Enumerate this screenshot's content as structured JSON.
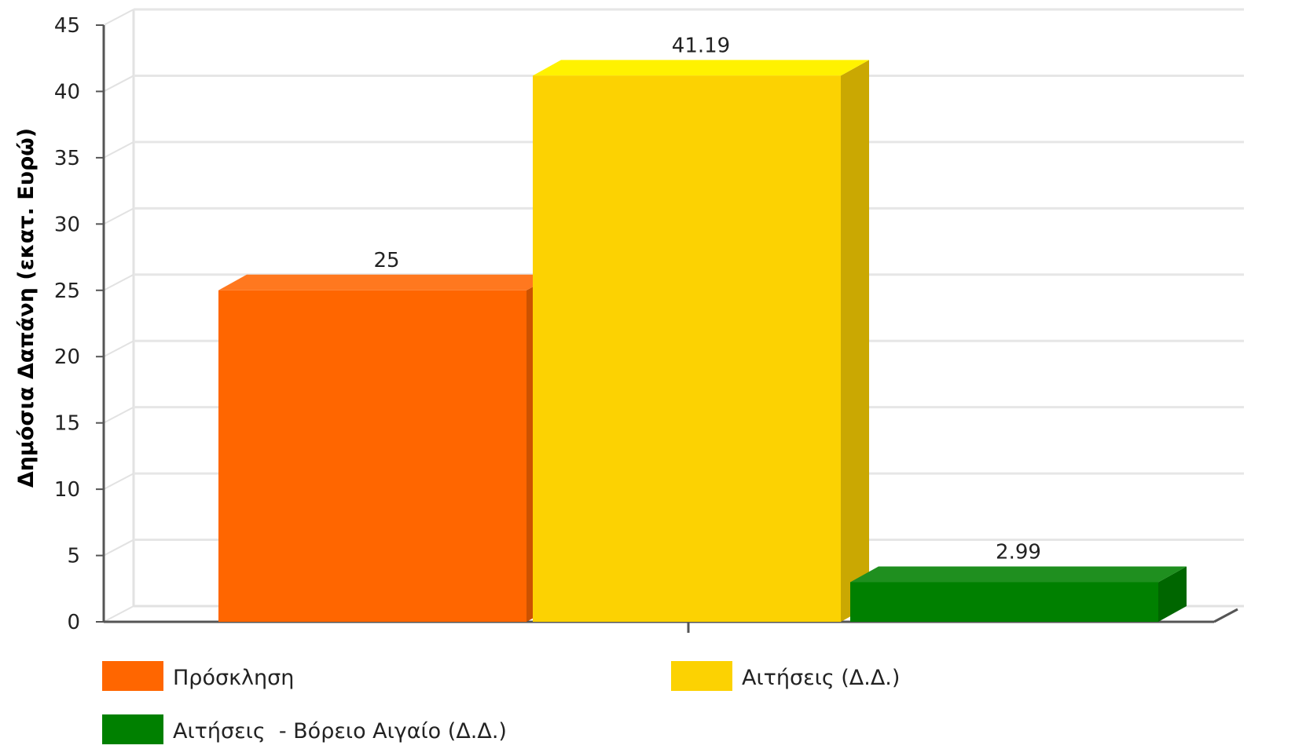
{
  "chart_data": {
    "type": "bar",
    "style": "3d-column",
    "categories": [
      ""
    ],
    "series": [
      {
        "name": "Πρόσκληση",
        "values": [
          25
        ],
        "color": "#FF6600",
        "data_label": "25"
      },
      {
        "name": "Αιτήσεις (Δ.Δ.)",
        "values": [
          41.19
        ],
        "color": "#FCD202",
        "data_label": "41.19"
      },
      {
        "name": "Αιτήσεις  - Βόρειο Αιγαίο (Δ.Δ.)",
        "values": [
          2.99
        ],
        "color": "#008000",
        "data_label": "2.99"
      }
    ],
    "ylabel": "Δημόσια Δαπάνη (εκατ. Ευρώ)",
    "xlabel": "",
    "ylim": [
      0,
      45
    ],
    "yticks": [
      0,
      5,
      10,
      15,
      20,
      25,
      30,
      35,
      40,
      45
    ],
    "ytick_labels": [
      "0",
      "5",
      "10",
      "15",
      "20",
      "25",
      "30",
      "35",
      "40",
      "45"
    ],
    "grid": true,
    "legend_position": "bottom"
  }
}
